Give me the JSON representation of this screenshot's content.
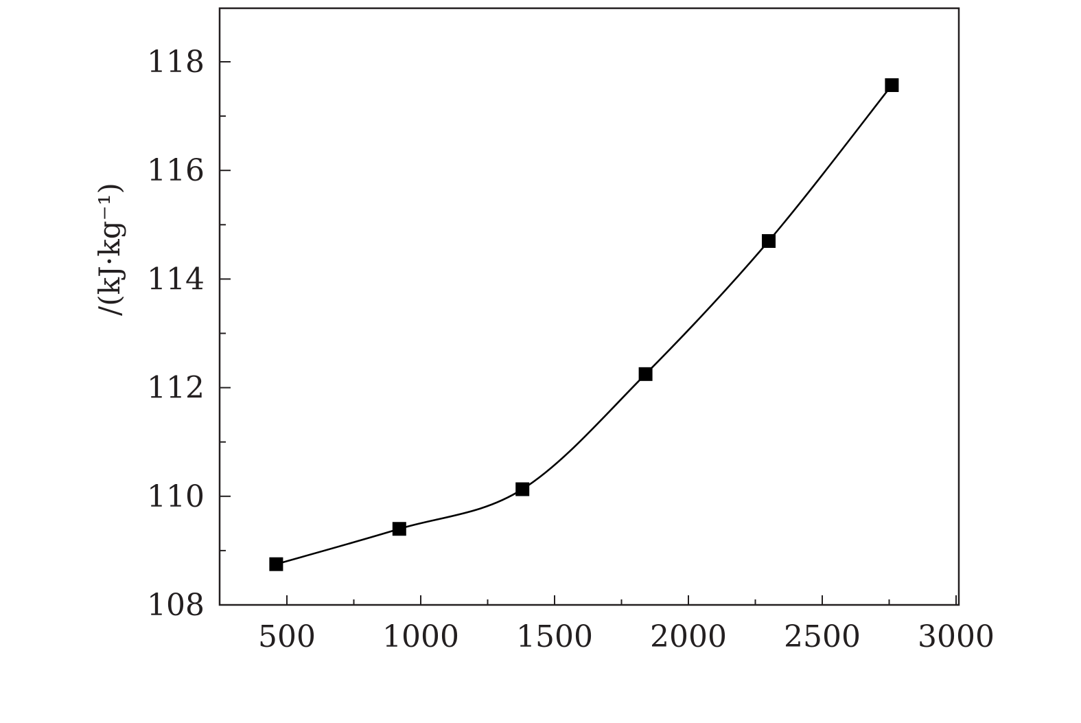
{
  "chart_data": {
    "type": "line",
    "title": "",
    "xlabel": "",
    "ylabel": "/(kJ·kg⁻¹)",
    "xlim": [
      250,
      3000
    ],
    "ylim": [
      108,
      119
    ],
    "x_ticks": [
      500,
      1000,
      1500,
      2000,
      2500,
      3000
    ],
    "x_tick_labels": [
      "500",
      "1000",
      "1500",
      "2000",
      "2500",
      "3000"
    ],
    "x_minor_ticks": [
      750,
      1250,
      1750,
      2250,
      2750
    ],
    "y_ticks": [
      108,
      110,
      112,
      114,
      116,
      118
    ],
    "y_tick_labels": [
      "108",
      "110",
      "112",
      "114",
      "116",
      "118"
    ],
    "y_minor_ticks": [
      109,
      111,
      113,
      115,
      117
    ],
    "grid": false,
    "legend": "none",
    "marker": "square",
    "series": [
      {
        "x": [
          460,
          920,
          1380,
          1840,
          2300,
          2760
        ],
        "y": [
          108.75,
          109.4,
          110.13,
          112.25,
          114.7,
          117.57
        ]
      }
    ]
  }
}
